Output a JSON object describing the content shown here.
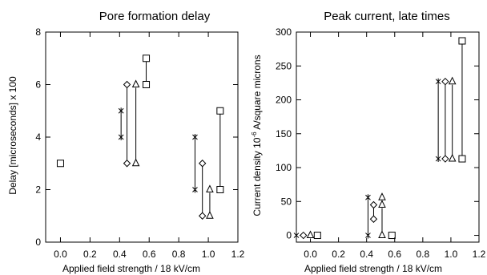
{
  "chart_data": [
    {
      "type": "scatter",
      "title": "Pore formation delay",
      "xlabel": "Applied field strength / 18 kV/cm",
      "ylabel": "Delay [microseconds] x 100",
      "xlim": [
        -0.1,
        1.2
      ],
      "ylim": [
        0,
        8
      ],
      "xticks": [
        "0.0",
        "0.2",
        "0.4",
        "0.6",
        "0.8",
        "1.0",
        "1.2"
      ],
      "yticks": [
        "0",
        "2",
        "4",
        "6",
        "8"
      ],
      "series": [
        {
          "marker": "asterisk",
          "points": [
            [
              0.41,
              5
            ],
            [
              0.41,
              4
            ],
            [
              0.91,
              4
            ],
            [
              0.91,
              2
            ]
          ]
        },
        {
          "marker": "diamond",
          "points": [
            [
              0.45,
              6
            ],
            [
              0.45,
              3
            ],
            [
              0.96,
              3
            ],
            [
              0.96,
              1
            ]
          ]
        },
        {
          "marker": "triangle",
          "points": [
            [
              0.51,
              6
            ],
            [
              0.51,
              3
            ],
            [
              1.01,
              2
            ],
            [
              1.01,
              1
            ]
          ]
        },
        {
          "marker": "square",
          "points": [
            [
              0.0,
              3
            ],
            [
              0.58,
              7
            ],
            [
              0.58,
              6
            ],
            [
              1.08,
              5
            ],
            [
              1.08,
              2
            ]
          ]
        }
      ],
      "vlines": [
        [
          0.41,
          4,
          5
        ],
        [
          0.45,
          3,
          6
        ],
        [
          0.51,
          3,
          6
        ],
        [
          0.58,
          6,
          7
        ],
        [
          0.91,
          2,
          4
        ],
        [
          0.96,
          1,
          3
        ],
        [
          1.01,
          1,
          2
        ],
        [
          1.08,
          2,
          5
        ]
      ]
    },
    {
      "type": "scatter",
      "title": "Peak current, late times",
      "xlabel": "Applied field strength / 18 kV/cm",
      "ylabel": "Current density 10-6 A/square microns",
      "ylabel_parts": [
        "Current density 10",
        "-6",
        " A/square microns"
      ],
      "xlim": [
        -0.1,
        1.2
      ],
      "ylim": [
        -10,
        300
      ],
      "xticks": [
        "0.0",
        "0.2",
        "0.4",
        "0.6",
        "0.8",
        "1.0",
        "1.2"
      ],
      "yticks": [
        "0",
        "50",
        "100",
        "150",
        "200",
        "250",
        "300"
      ],
      "series": [
        {
          "marker": "asterisk",
          "points": [
            [
              -0.1,
              0
            ],
            [
              0.41,
              56
            ],
            [
              0.41,
              0
            ],
            [
              0.91,
              227
            ],
            [
              0.91,
              113
            ]
          ]
        },
        {
          "marker": "diamond",
          "points": [
            [
              -0.05,
              0
            ],
            [
              0.45,
              45
            ],
            [
              0.45,
              24
            ],
            [
              0.96,
              227
            ],
            [
              0.96,
              113
            ]
          ]
        },
        {
          "marker": "triangle",
          "points": [
            [
              0.0,
              0
            ],
            [
              0.51,
              56
            ],
            [
              0.51,
              45
            ],
            [
              0.51,
              0
            ],
            [
              1.01,
              227
            ],
            [
              1.01,
              113
            ]
          ]
        },
        {
          "marker": "square",
          "points": [
            [
              0.05,
              0
            ],
            [
              0.58,
              0
            ],
            [
              1.08,
              287
            ],
            [
              1.08,
              113
            ]
          ]
        }
      ],
      "vlines": [
        [
          0.41,
          0,
          56
        ],
        [
          0.45,
          24,
          45
        ],
        [
          0.51,
          0,
          56
        ],
        [
          0.91,
          113,
          227
        ],
        [
          0.96,
          113,
          227
        ],
        [
          1.01,
          113,
          227
        ],
        [
          1.08,
          113,
          287
        ]
      ]
    }
  ]
}
